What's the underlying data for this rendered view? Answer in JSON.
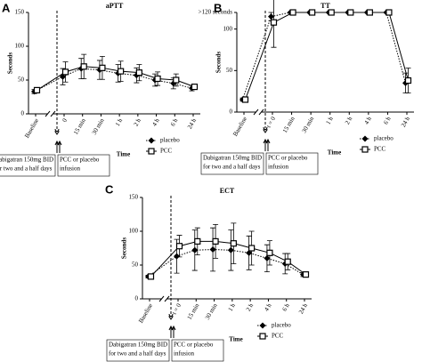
{
  "chart_data": [
    {
      "type": "line",
      "panel_label": "A",
      "title": "aPTT",
      "y_label": "Seconds",
      "x_label": "Time",
      "categories": [
        "Baseline",
        "0",
        "15 min",
        "30 min",
        "1 h",
        "2 h",
        "4 h",
        "6 h",
        "24 h"
      ],
      "ylim": [
        0,
        150
      ],
      "yticks": [
        0,
        50,
        100,
        150
      ],
      "series": [
        {
          "name": "placebo",
          "color": "#000000",
          "marker": "diamond",
          "dashed": true,
          "values": [
            33,
            55,
            67,
            65,
            60,
            57,
            50,
            45,
            38
          ],
          "errors": [
            3,
            12,
            15,
            14,
            13,
            11,
            9,
            8,
            4
          ]
        },
        {
          "name": "PCC",
          "color": "#000000",
          "marker": "square",
          "dashed": false,
          "values": [
            35,
            62,
            70,
            68,
            63,
            61,
            52,
            50,
            40
          ],
          "errors": [
            3,
            15,
            18,
            17,
            15,
            12,
            10,
            9,
            4
          ]
        }
      ],
      "annotations": [
        [
          "Dabigatran 150mg BID",
          "for two and a half days"
        ],
        [
          "PCC or placebo",
          "infusion"
        ]
      ]
    },
    {
      "type": "line",
      "panel_label": "B",
      "title": "TT",
      "y_label": "Seconds",
      "x_label": "Time",
      "categories": [
        "Baseline",
        "t = 0",
        "15 min",
        "30 min",
        "1 h",
        "2 h",
        "4 h",
        "6 h",
        "24 h"
      ],
      "ylim": [
        0,
        120
      ],
      "yticks": [
        0,
        50,
        100,
        {
          "value": 120,
          "label": ">120 seconds"
        }
      ],
      "series": [
        {
          "name": "placebo",
          "color": "#000000",
          "marker": "diamond",
          "dashed": true,
          "values": [
            15,
            115,
            120,
            120,
            120,
            120,
            120,
            120,
            35
          ],
          "errors": [
            2,
            5,
            0,
            0,
            0,
            0,
            0,
            0,
            12
          ]
        },
        {
          "name": "PCC",
          "color": "#000000",
          "marker": "square",
          "dashed": false,
          "values": [
            15,
            108,
            120,
            120,
            120,
            120,
            120,
            120,
            38
          ],
          "errors": [
            2,
            30,
            0,
            0,
            0,
            0,
            0,
            0,
            15
          ]
        }
      ],
      "annotations": [
        [
          "Dabigatran 150mg BID",
          "for two and a half days"
        ],
        [
          "PCC or placebo",
          "infusion"
        ]
      ]
    },
    {
      "type": "line",
      "panel_label": "C",
      "title": "ECT",
      "y_label": "Seconds",
      "x_label": "Time",
      "categories": [
        "Baseline",
        "t = 0",
        "15 min",
        "30 min",
        "1 h",
        "2 h",
        "4 h",
        "6 h",
        "24 h"
      ],
      "ylim": [
        0,
        150
      ],
      "yticks": [
        0,
        50,
        100,
        150
      ],
      "series": [
        {
          "name": "placebo",
          "color": "#000000",
          "marker": "diamond",
          "dashed": true,
          "values": [
            33,
            63,
            72,
            73,
            72,
            68,
            60,
            52,
            36
          ],
          "errors": [
            2,
            25,
            30,
            32,
            30,
            25,
            20,
            15,
            3
          ]
        },
        {
          "name": "PCC",
          "color": "#000000",
          "marker": "square",
          "dashed": false,
          "values": [
            33,
            78,
            85,
            85,
            82,
            75,
            68,
            55,
            36
          ],
          "errors": [
            2,
            16,
            20,
            25,
            30,
            25,
            18,
            12,
            3
          ]
        }
      ],
      "annotations": [
        [
          "Dabigatran 150mg BID",
          "for two and a half days"
        ],
        [
          "PCC or placebo",
          "infusion"
        ]
      ]
    }
  ]
}
